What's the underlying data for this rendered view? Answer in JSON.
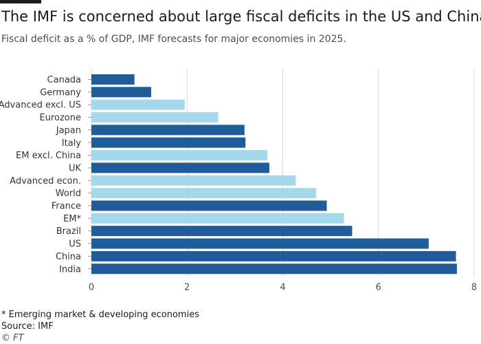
{
  "title": "The IMF is concerned about large fiscal deficits in the US and China",
  "subtitle": "Fiscal deficit as a % of GDP, IMF forecasts for major economies in 2025.",
  "footnote": "* Emerging market & developing economies",
  "source": "Source: IMF",
  "credit": "© FT",
  "colors": {
    "dark": "#1f5c99",
    "light": "#a6d8ec",
    "grid": "#d9d9d9",
    "background": "#ffffff"
  },
  "chart_data": {
    "type": "bar",
    "orientation": "horizontal",
    "categories": [
      "Canada",
      "Germany",
      "Advanced excl. US",
      "Eurozone",
      "Japan",
      "Italy",
      "EM excl. China",
      "UK",
      "Advanced econ.",
      "World",
      "France",
      "EM*",
      "Brazil",
      "US",
      "China",
      "India"
    ],
    "values": [
      0.9,
      1.25,
      1.95,
      2.65,
      3.2,
      3.22,
      3.68,
      3.72,
      4.27,
      4.7,
      4.92,
      5.28,
      5.45,
      7.05,
      7.62,
      7.64
    ],
    "styles": [
      "dark",
      "dark",
      "light",
      "light",
      "dark",
      "dark",
      "light",
      "dark",
      "light",
      "light",
      "dark",
      "light",
      "dark",
      "dark",
      "dark",
      "dark"
    ],
    "xlim": [
      0,
      8
    ],
    "xticks": [
      0,
      2,
      4,
      6,
      8
    ],
    "grid": true,
    "xlabel": "",
    "ylabel": ""
  }
}
